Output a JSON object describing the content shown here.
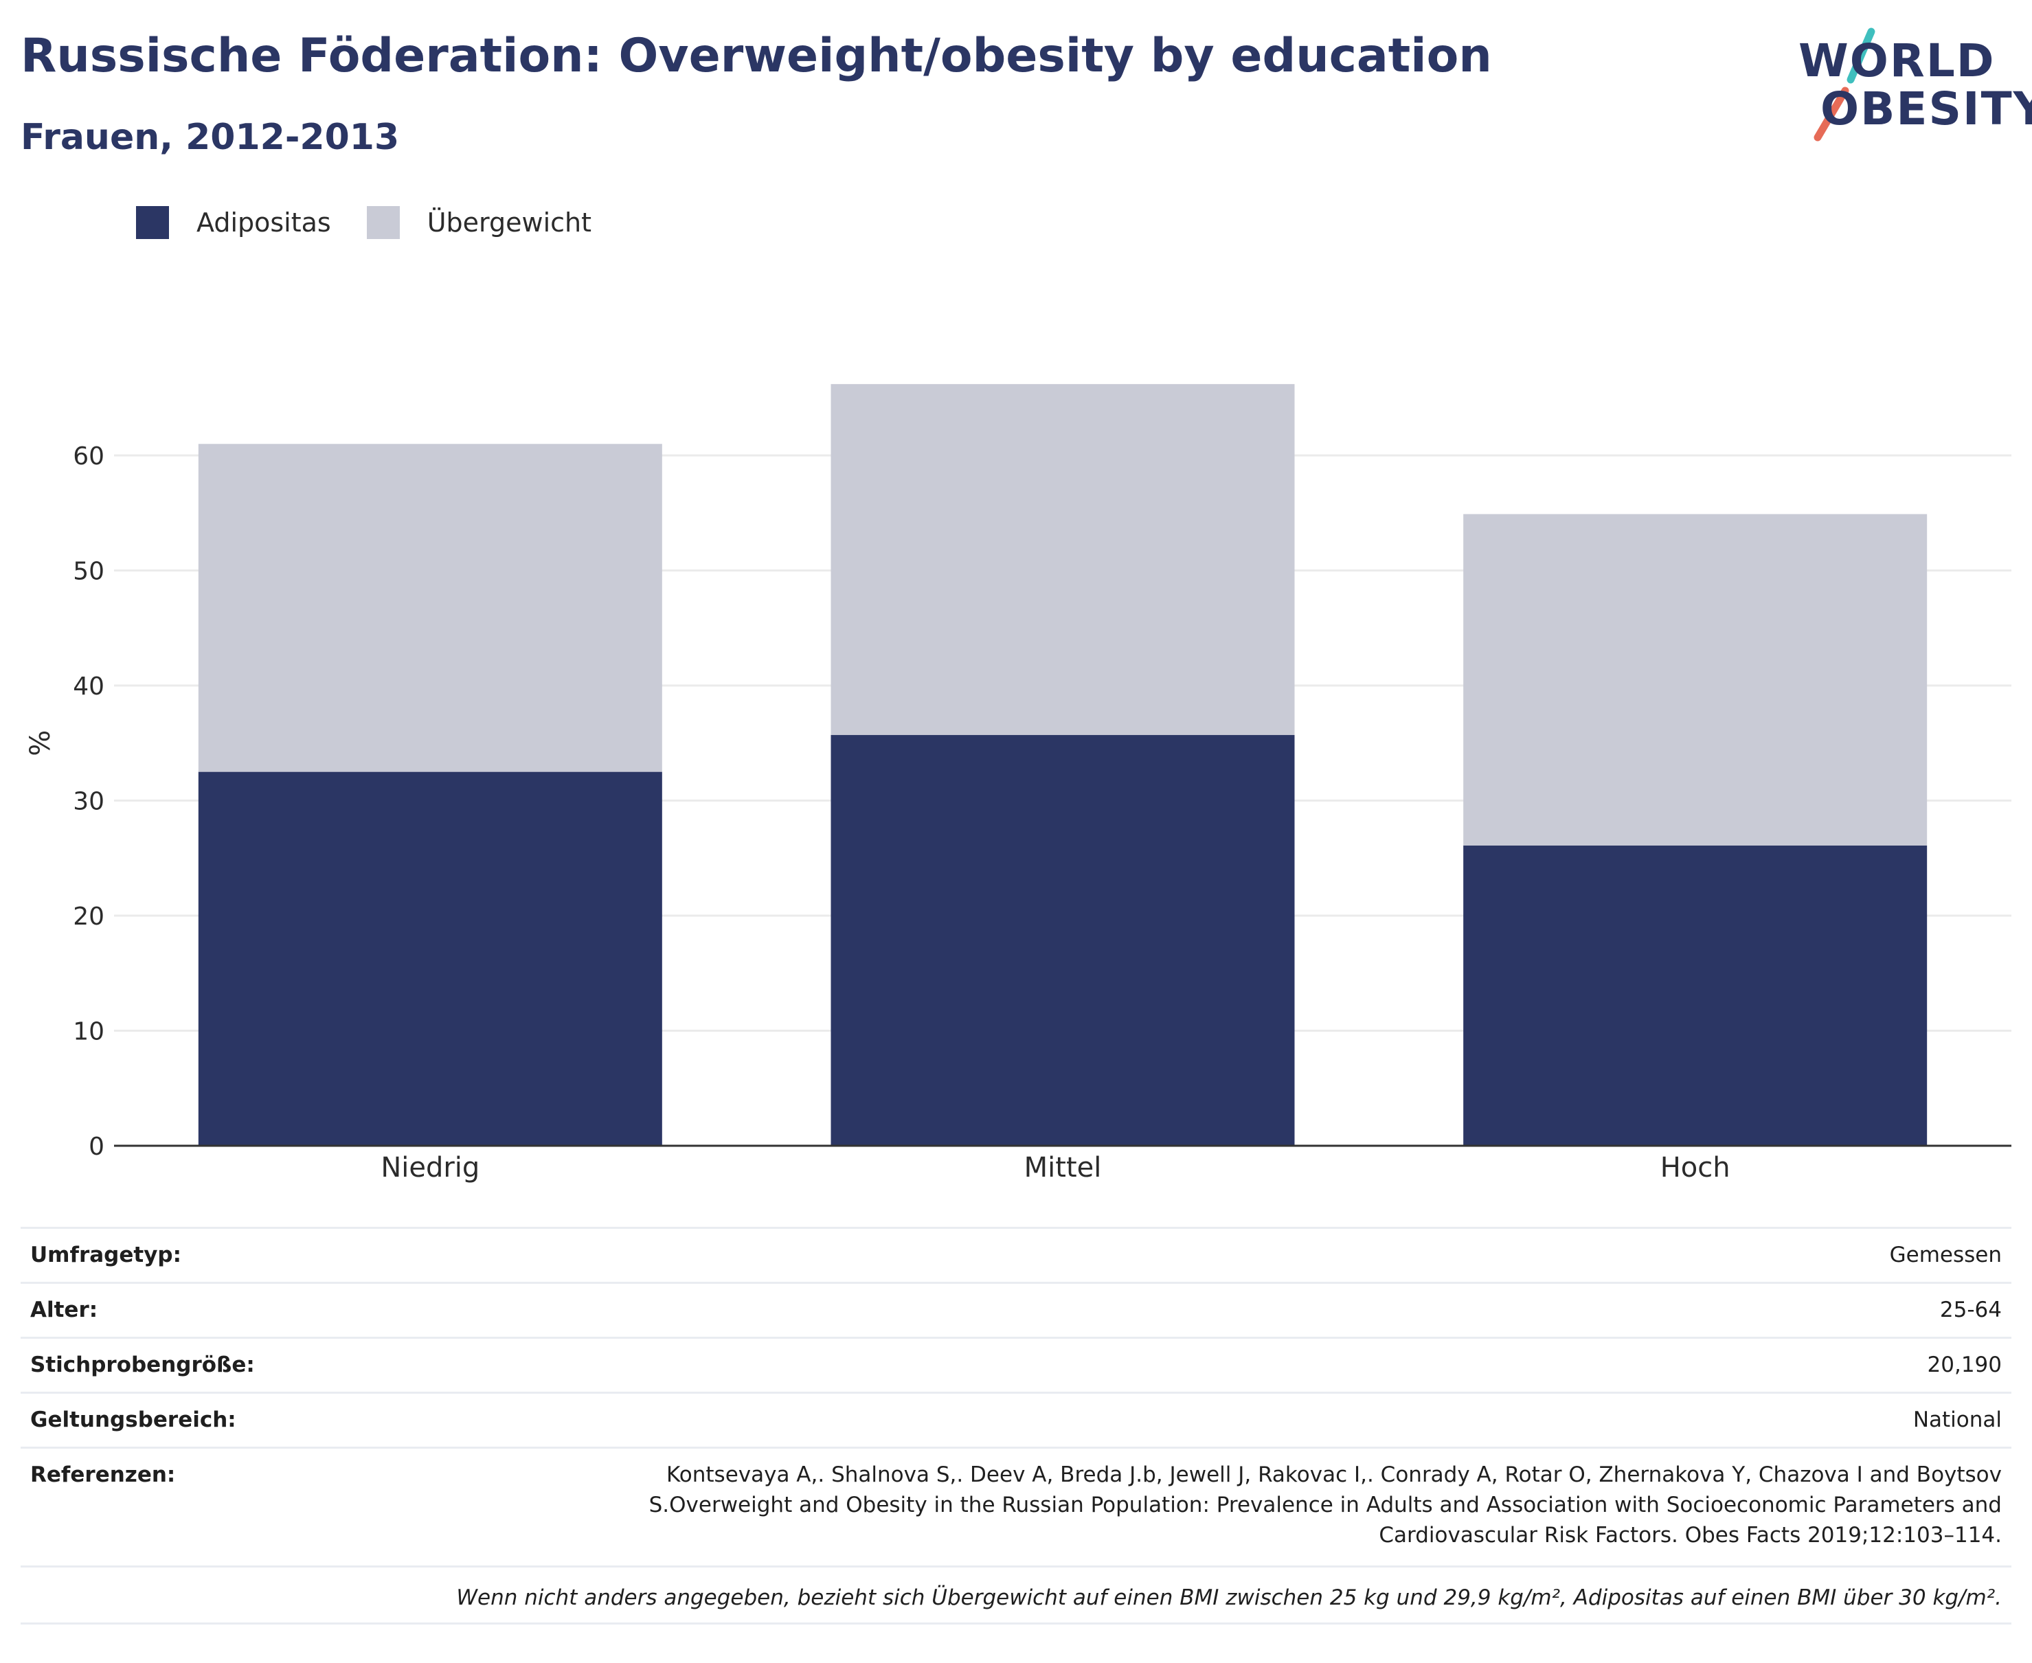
{
  "header": {
    "title": "Russische Föderation: Overweight/obesity by education",
    "subtitle": "Frauen, 2012-2013"
  },
  "logo": {
    "line1": "WORLD",
    "line2": "OBESITY",
    "slash_colors": [
      "#3fbfbe",
      "#e66b57"
    ]
  },
  "colors": {
    "adipositas": "#2b3664",
    "uebergewicht": "#c9cbd6",
    "axis": "#333333",
    "grid": "#ebebeb",
    "text": "#2b3664"
  },
  "chart_data": {
    "type": "bar",
    "stacked": true,
    "categories": [
      "Niedrig",
      "Mittel",
      "Hoch"
    ],
    "series": [
      {
        "name": "Adipositas",
        "values": [
          32.5,
          35.7,
          26.1
        ]
      },
      {
        "name": "Übergewicht",
        "values": [
          28.5,
          30.5,
          28.8
        ]
      }
    ],
    "ylabel": "%",
    "ylim": [
      0,
      70
    ],
    "yticks": [
      0,
      10,
      20,
      30,
      40,
      50,
      60
    ],
    "grid": true,
    "legend_position": "top-left"
  },
  "info": {
    "rows": [
      {
        "label": "Umfragetyp:",
        "value": "Gemessen"
      },
      {
        "label": "Alter:",
        "value": "25-64"
      },
      {
        "label": "Stichprobengröße:",
        "value": "20,190"
      },
      {
        "label": "Geltungsbereich:",
        "value": "National"
      },
      {
        "label": "Referenzen:",
        "value": "Kontsevaya A,. Shalnova S,. Deev A, Breda J.b, Jewell J, Rakovac I,. Conrady A, Rotar O, Zhernakova Y, Chazova I and Boytsov S.Overweight and Obesity in the Russian Population: Prevalence in Adults and Association with Socioeconomic Parameters and Cardiovascular Risk Factors. Obes Facts 2019;12:103–114."
      }
    ],
    "note": "Wenn nicht anders angegeben, bezieht sich Übergewicht auf einen BMI zwischen 25 kg und 29,9 kg/m², Adipositas auf einen BMI über 30 kg/m²."
  }
}
